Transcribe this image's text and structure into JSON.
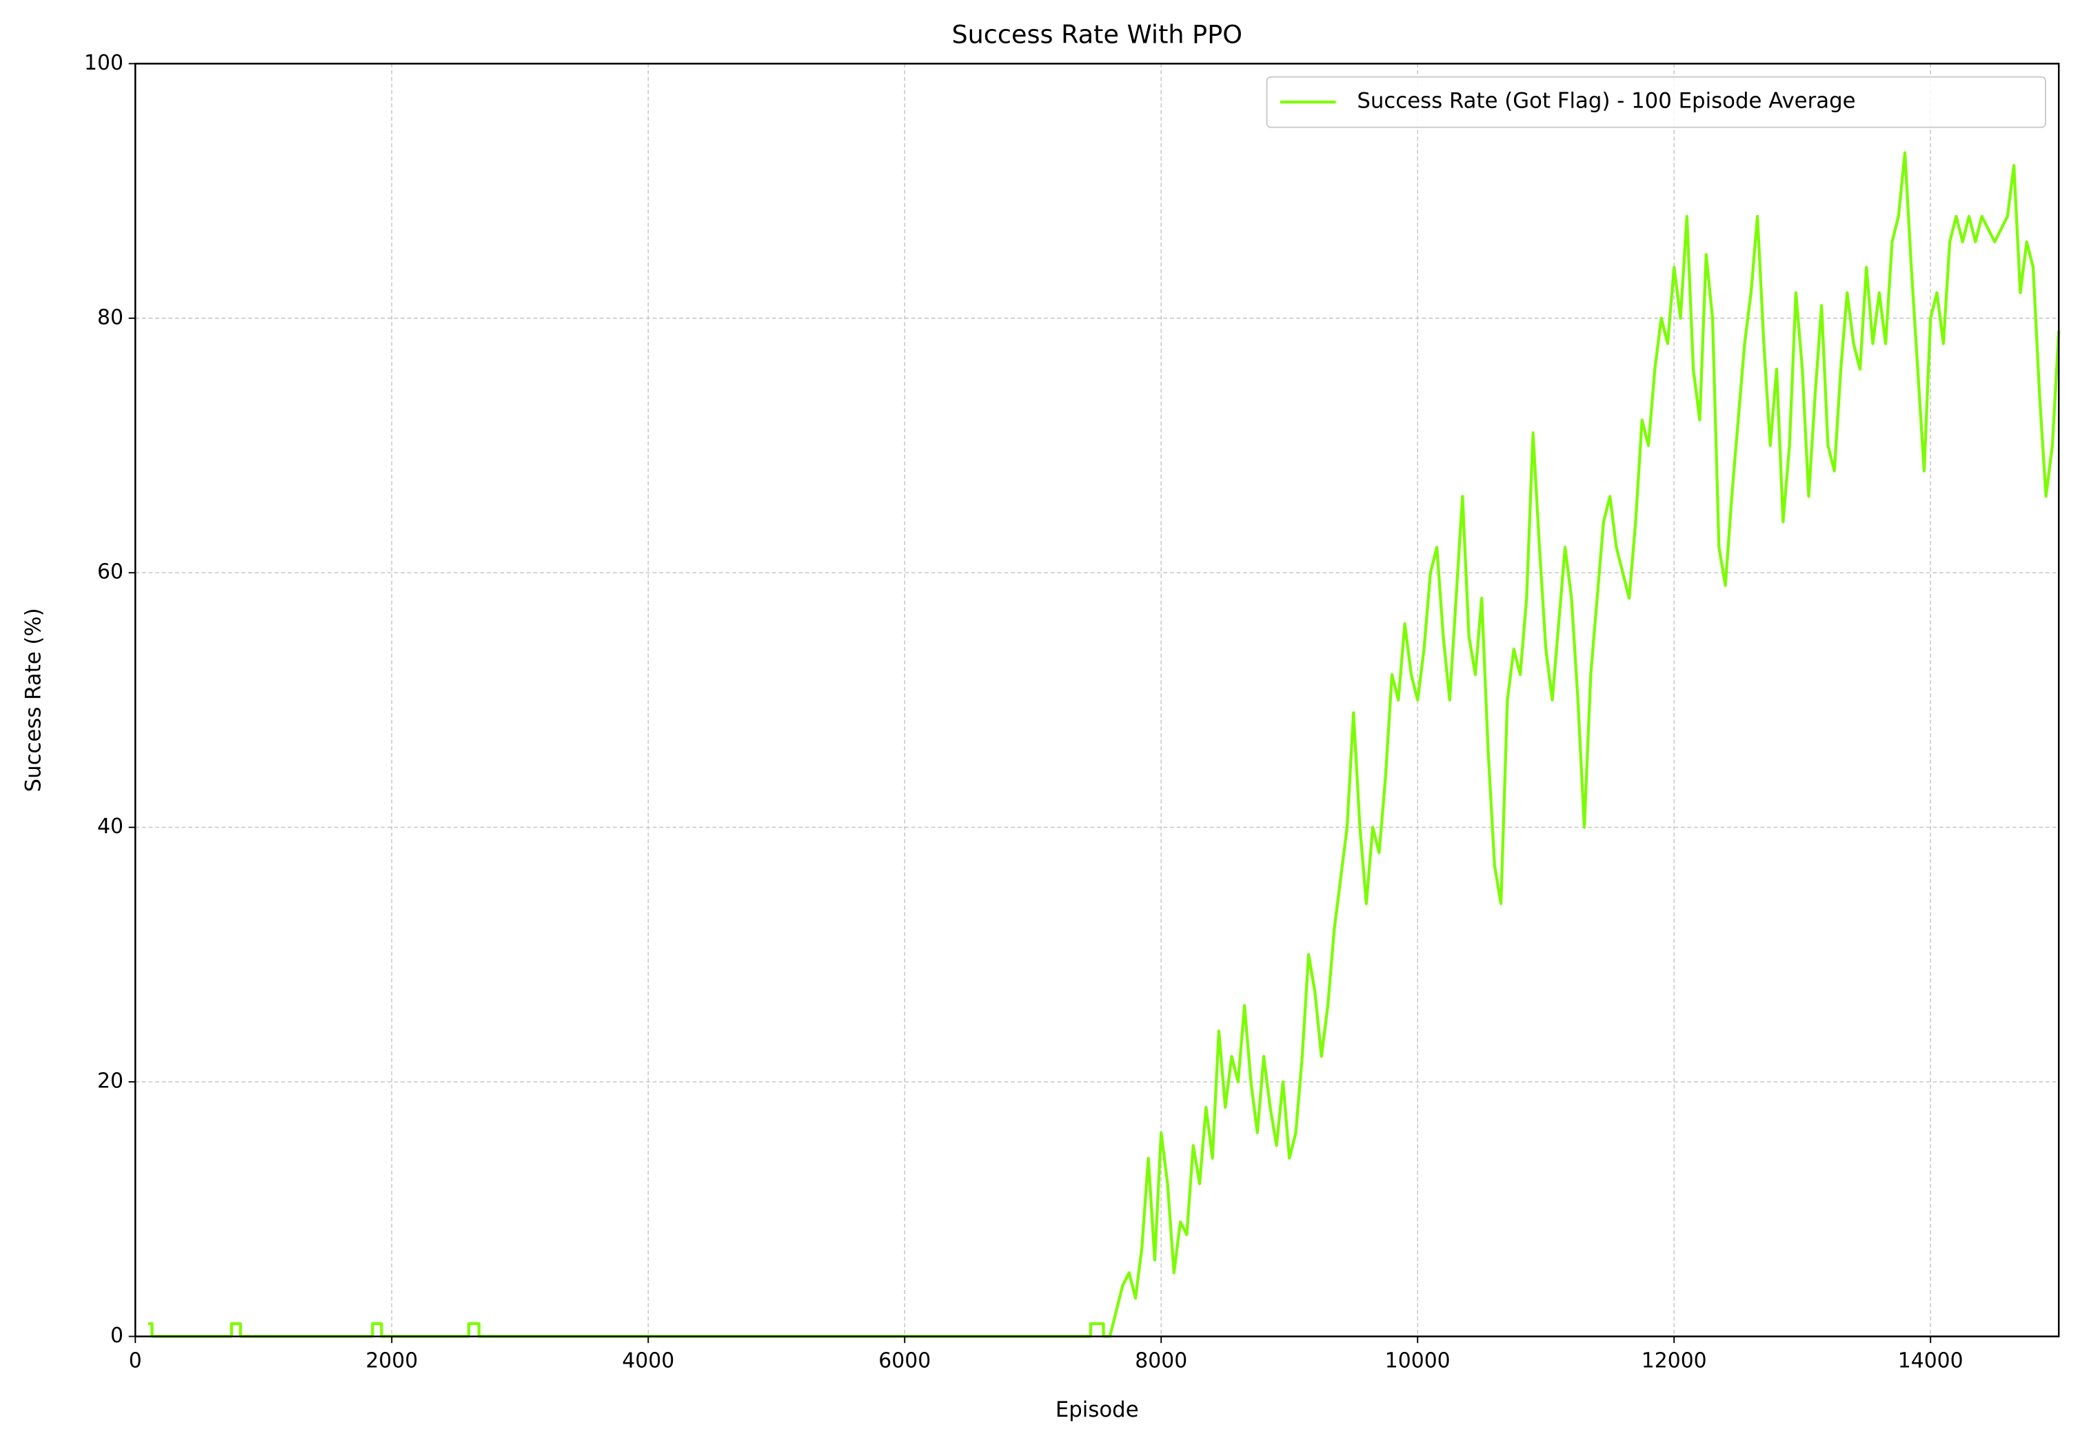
{
  "chart_data": {
    "type": "line",
    "title": "Success Rate With PPO",
    "x_label": "Episode",
    "y_label": "Success Rate (%)",
    "xlim": [
      0,
      15000
    ],
    "ylim": [
      0,
      100
    ],
    "xticks": [
      0,
      2000,
      4000,
      6000,
      8000,
      10000,
      12000,
      14000
    ],
    "yticks": [
      0,
      20,
      40,
      60,
      80,
      100
    ],
    "grid": true,
    "legend": "upper right",
    "x": [
      100,
      100,
      130,
      130,
      750,
      750,
      820,
      820,
      1850,
      1850,
      1920,
      1920,
      2600,
      2600,
      2680,
      2680,
      7450,
      7450,
      7550,
      7550,
      7600,
      7650,
      7700,
      7750,
      7800,
      7850,
      7900,
      7950,
      8000,
      8050,
      8100,
      8150,
      8200,
      8250,
      8300,
      8350,
      8400,
      8450,
      8500,
      8550,
      8600,
      8650,
      8700,
      8750,
      8800,
      8850,
      8900,
      8950,
      9000,
      9050,
      9100,
      9150,
      9200,
      9250,
      9300,
      9350,
      9400,
      9450,
      9500,
      9550,
      9600,
      9650,
      9700,
      9750,
      9800,
      9850,
      9900,
      9950,
      10000,
      10050,
      10100,
      10150,
      10200,
      10250,
      10300,
      10350,
      10400,
      10450,
      10500,
      10550,
      10600,
      10650,
      10700,
      10750,
      10800,
      10850,
      10900,
      10950,
      11000,
      11050,
      11100,
      11150,
      11200,
      11250,
      11300,
      11350,
      11400,
      11450,
      11500,
      11550,
      11600,
      11650,
      11700,
      11750,
      11800,
      11850,
      11900,
      11950,
      12000,
      12050,
      12100,
      12150,
      12200,
      12250,
      12300,
      12350,
      12400,
      12450,
      12500,
      12550,
      12600,
      12650,
      12700,
      12750,
      12800,
      12850,
      12900,
      12950,
      13000,
      13050,
      13100,
      13150,
      13200,
      13250,
      13300,
      13350,
      13400,
      13450,
      13500,
      13550,
      13600,
      13650,
      13700,
      13750,
      13800,
      13850,
      13900,
      13950,
      14000,
      14050,
      14100,
      14150,
      14200,
      14250,
      14300,
      14350,
      14400,
      14500,
      14600,
      14650,
      14700,
      14750,
      14800,
      14850,
      14900,
      14950,
      15000
    ],
    "series": [
      {
        "name": "Success Rate (Got Flag) - 100 Episode Average",
        "color": "#7cfc00",
        "values": [
          1,
          1,
          1,
          0,
          0,
          1,
          1,
          0,
          0,
          1,
          1,
          0,
          0,
          1,
          1,
          0,
          0,
          1,
          1,
          0,
          0,
          2,
          4,
          5,
          3,
          7,
          14,
          6,
          16,
          12,
          5,
          9,
          8,
          15,
          12,
          18,
          14,
          24,
          18,
          22,
          20,
          26,
          20,
          16,
          22,
          18,
          15,
          20,
          14,
          16,
          22,
          30,
          27,
          22,
          26,
          32,
          36,
          40,
          49,
          40,
          34,
          40,
          38,
          44,
          52,
          50,
          56,
          52,
          50,
          54,
          60,
          62,
          55,
          50,
          58,
          66,
          55,
          52,
          58,
          46,
          37,
          34,
          50,
          54,
          52,
          58,
          71,
          62,
          54,
          50,
          56,
          62,
          58,
          50,
          40,
          52,
          58,
          64,
          66,
          62,
          60,
          58,
          64,
          72,
          70,
          76,
          80,
          78,
          84,
          80,
          88,
          76,
          72,
          85,
          80,
          62,
          59,
          66,
          72,
          78,
          82,
          88,
          78,
          70,
          76,
          64,
          70,
          82,
          76,
          66,
          74,
          81,
          70,
          68,
          76,
          82,
          78,
          76,
          84,
          78,
          82,
          78,
          86,
          88,
          93,
          84,
          76,
          68,
          80,
          82,
          78,
          86,
          88,
          86,
          88,
          86,
          88,
          86,
          88,
          92,
          82,
          86,
          84,
          74,
          66,
          70,
          79
        ]
      }
    ]
  }
}
